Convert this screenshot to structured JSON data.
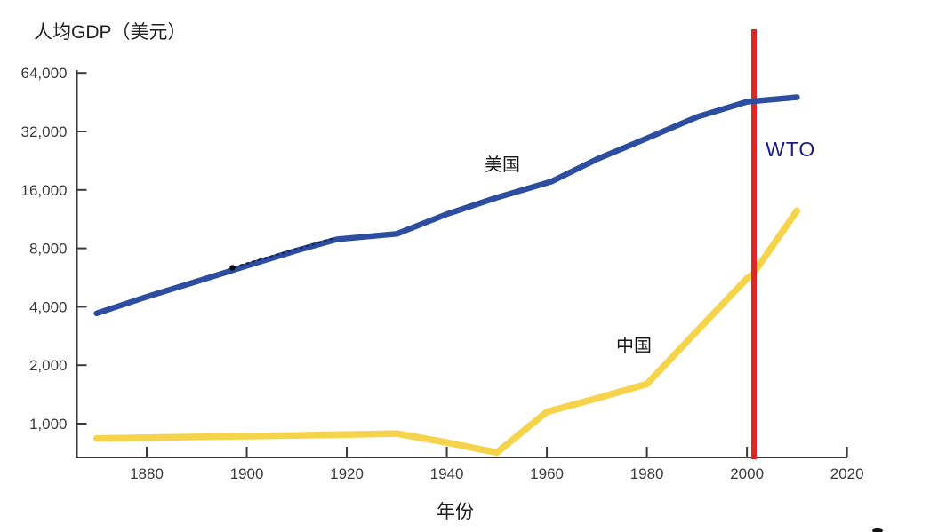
{
  "chart_data": {
    "type": "line",
    "title": "人均GDP（美元）",
    "xlabel": "年份",
    "ylabel": "人均GDP（美元）",
    "y_scale": "log2",
    "grid": false,
    "legend_position": "inline-labels",
    "xlim": [
      1866,
      2020
    ],
    "ylim": [
      670,
      68000
    ],
    "x_ticks": [
      {
        "label": "1880",
        "value": 1880
      },
      {
        "label": "1900",
        "value": 1900
      },
      {
        "label": "1920",
        "value": 1920
      },
      {
        "label": "1940",
        "value": 1940
      },
      {
        "label": "1960",
        "value": 1960
      },
      {
        "label": "1980",
        "value": 1980
      },
      {
        "label": "2000",
        "value": 2000
      },
      {
        "label": "2020",
        "value": 2020
      }
    ],
    "y_ticks": [
      {
        "label": "64,000",
        "value": 64000
      },
      {
        "label": "32,000",
        "value": 32000
      },
      {
        "label": "16,000",
        "value": 16000
      },
      {
        "label": "8,000",
        "value": 8000
      },
      {
        "label": "4,000",
        "value": 4000
      },
      {
        "label": "2,000",
        "value": 2000
      },
      {
        "label": "1,000",
        "value": 1000
      }
    ],
    "series": [
      {
        "id": "us",
        "name": "美国",
        "color": "#2d4da0",
        "points": [
          [
            1870,
            3700
          ],
          [
            1880,
            4500
          ],
          [
            1890,
            5400
          ],
          [
            1900,
            6500
          ],
          [
            1910,
            7800
          ],
          [
            1918,
            8900
          ],
          [
            1930,
            9500
          ],
          [
            1940,
            12000
          ],
          [
            1950,
            14600
          ],
          [
            1961,
            17700
          ],
          [
            1970,
            23000
          ],
          [
            1980,
            29500
          ],
          [
            1990,
            38000
          ],
          [
            2000,
            45500
          ],
          [
            2010,
            48000
          ]
        ]
      },
      {
        "id": "china",
        "name": "中国",
        "color": "#f5d44c",
        "points": [
          [
            1870,
            840
          ],
          [
            1890,
            855
          ],
          [
            1910,
            870
          ],
          [
            1930,
            890
          ],
          [
            1940,
            800
          ],
          [
            1950,
            710
          ],
          [
            1960,
            1150
          ],
          [
            1970,
            1350
          ],
          [
            1980,
            1600
          ],
          [
            1990,
            3000
          ],
          [
            2000,
            5600
          ],
          [
            2001,
            5800
          ],
          [
            2010,
            12500
          ]
        ]
      }
    ],
    "annotation": {
      "event_line": {
        "year": 2001.4,
        "label": "WTO",
        "line_color": "#e12525",
        "label_color": "#1c1c82"
      }
    }
  }
}
